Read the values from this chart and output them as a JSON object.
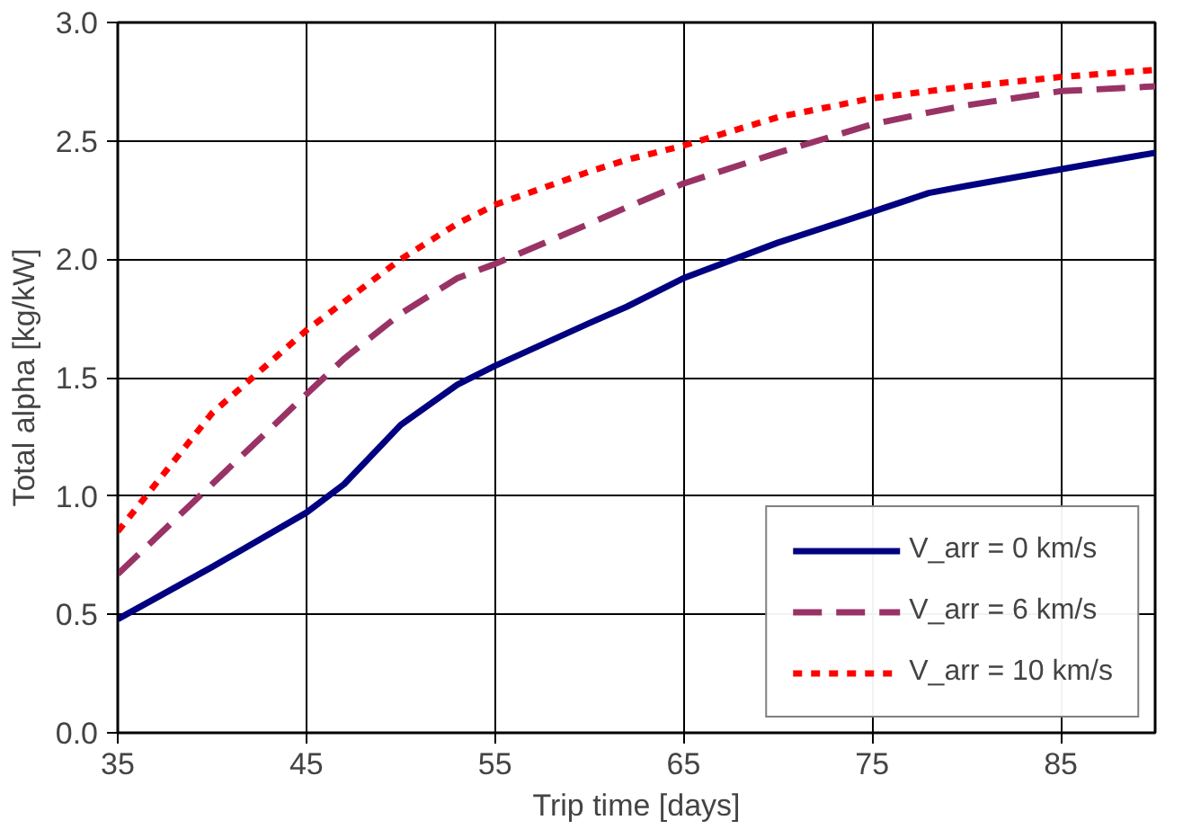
{
  "chart_data": {
    "type": "line",
    "xlabel": "Trip time [days]",
    "ylabel": "Total alpha [kg/kW]",
    "xlim": [
      35,
      90
    ],
    "xticks": [
      35,
      45,
      55,
      65,
      75,
      85
    ],
    "ylim": [
      0,
      3
    ],
    "yticks": [
      {
        "value": 0,
        "label": "0.0"
      },
      {
        "value": 0.5,
        "label": "0.5"
      },
      {
        "value": 1,
        "label": "1.0"
      },
      {
        "value": 1.5,
        "label": "1.5"
      },
      {
        "value": 2,
        "label": "2.0"
      },
      {
        "value": 2.5,
        "label": "2.5"
      },
      {
        "value": 3,
        "label": "3.0"
      }
    ],
    "grid": true,
    "legend": "bottom right",
    "x": [
      35,
      40,
      45,
      47,
      50,
      53,
      55,
      60,
      62,
      65,
      70,
      75,
      78,
      80,
      85,
      90
    ],
    "series": [
      {
        "name": "V_arr = 0 km/s",
        "color": "#000080",
        "line_style": "solid",
        "values": [
          0.48,
          0.7,
          0.93,
          1.05,
          1.3,
          1.47,
          1.55,
          1.73,
          1.8,
          1.92,
          2.07,
          2.2,
          2.28,
          2.31,
          2.38,
          2.45
        ]
      },
      {
        "name": "V_arr = 6 km/s",
        "color": "#993366",
        "line_style": "dashed",
        "values": [
          0.67,
          1.05,
          1.43,
          1.58,
          1.77,
          1.92,
          1.98,
          2.15,
          2.22,
          2.32,
          2.45,
          2.57,
          2.62,
          2.65,
          2.71,
          2.73
        ]
      },
      {
        "name": "V_arr = 10 km/s",
        "color": "#ff0000",
        "line_style": "dotted",
        "values": [
          0.85,
          1.35,
          1.7,
          1.82,
          2.0,
          2.15,
          2.23,
          2.37,
          2.42,
          2.48,
          2.6,
          2.68,
          2.71,
          2.73,
          2.77,
          2.8
        ]
      }
    ]
  }
}
